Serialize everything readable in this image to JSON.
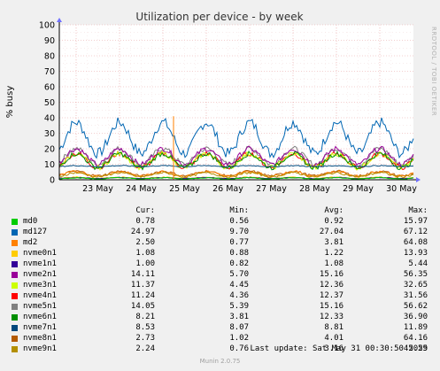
{
  "chart_data": {
    "type": "line",
    "title": "Utilization per device - by week",
    "ylabel": "% busy",
    "xlabel": "",
    "ylim": [
      0,
      100
    ],
    "yticks": [
      0,
      10,
      20,
      30,
      40,
      50,
      60,
      70,
      80,
      90,
      100
    ],
    "x_ticks": [
      "23 May",
      "24 May",
      "25 May",
      "26 May",
      "27 May",
      "28 May",
      "29 May",
      "30 May"
    ],
    "grid": true,
    "series": [
      {
        "name": "md0",
        "color": "#00cc00",
        "cur": "0.78",
        "min": "0.56",
        "avg": "0.92",
        "max": "15.97",
        "level": 0.92,
        "amp": 0.4,
        "noise": 0.3
      },
      {
        "name": "md127",
        "color": "#0066b3",
        "cur": "24.97",
        "min": "9.70",
        "avg": "27.04",
        "max": "67.12",
        "level": 27,
        "amp": 10,
        "noise": 3.5
      },
      {
        "name": "md2",
        "color": "#ff8000",
        "cur": "2.50",
        "min": "0.77",
        "avg": "3.81",
        "max": "64.08",
        "level": 3.8,
        "amp": 1.5,
        "noise": 0.8
      },
      {
        "name": "nvme0n1",
        "color": "#ffcc00",
        "cur": "1.08",
        "min": "0.88",
        "avg": "1.22",
        "max": "13.93",
        "level": 1.2,
        "amp": 0.4,
        "noise": 0.3
      },
      {
        "name": "nvme1n1",
        "color": "#330099",
        "cur": "1.00",
        "min": "0.82",
        "avg": "1.08",
        "max": "5.44",
        "level": 1.1,
        "amp": 0.3,
        "noise": 0.2
      },
      {
        "name": "nvme2n1",
        "color": "#990099",
        "cur": "14.11",
        "min": "5.70",
        "avg": "15.16",
        "max": "56.35",
        "level": 15,
        "amp": 5,
        "noise": 1.8
      },
      {
        "name": "nvme3n1",
        "color": "#ccff00",
        "cur": "11.37",
        "min": "4.45",
        "avg": "12.36",
        "max": "32.65",
        "level": 12.3,
        "amp": 4.5,
        "noise": 1.6
      },
      {
        "name": "nvme4n1",
        "color": "#ff0000",
        "cur": "11.24",
        "min": "4.36",
        "avg": "12.37",
        "max": "31.56",
        "level": 12.4,
        "amp": 4.5,
        "noise": 1.6
      },
      {
        "name": "nvme5n1",
        "color": "#808080",
        "cur": "14.05",
        "min": "5.39",
        "avg": "15.16",
        "max": "56.62",
        "level": 15.1,
        "amp": 5,
        "noise": 1.8
      },
      {
        "name": "nvme6n1",
        "color": "#008f00",
        "cur": "8.21",
        "min": "3.81",
        "avg": "12.33",
        "max": "36.90",
        "level": 12.3,
        "amp": 4.5,
        "noise": 1.6
      },
      {
        "name": "nvme7n1",
        "color": "#00487d",
        "cur": "8.53",
        "min": "8.07",
        "avg": "8.81",
        "max": "11.89",
        "level": 8.8,
        "amp": 0.3,
        "noise": 0.3
      },
      {
        "name": "nvme8n1",
        "color": "#b35a00",
        "cur": "2.73",
        "min": "1.02",
        "avg": "4.01",
        "max": "64.16",
        "level": 4.0,
        "amp": 1.5,
        "noise": 0.8
      },
      {
        "name": "nvme9n1",
        "color": "#b38f00",
        "cur": "2.24",
        "min": "0.76",
        "avg": "3.16",
        "max": "45.59",
        "level": 3.2,
        "amp": 1.3,
        "noise": 0.7
      }
    ]
  },
  "legend_headers": {
    "cur": "Cur:",
    "min": "Min:",
    "avg": "Avg:",
    "max": "Max:"
  },
  "last_update": "Last update: Sat May 31 00:30:50 2025",
  "footer": "Munin 2.0.75",
  "side_text": "RRDTOOL / TOBI OETIKER"
}
